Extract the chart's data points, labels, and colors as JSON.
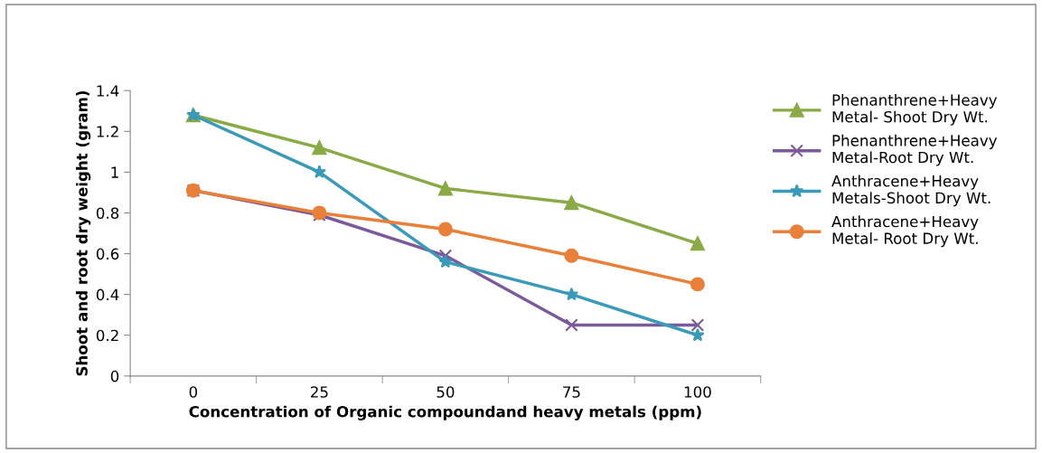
{
  "chart_data": {
    "type": "line",
    "xlabel": "Concentration of Organic compoundand heavy metals (ppm)",
    "ylabel": "Shoot and root dry weight (gram)",
    "categories": [
      "0",
      "25",
      "50",
      "75",
      "100"
    ],
    "series": [
      {
        "name": "Phenanthrene+Heavy\nMetal- Shoot Dry Wt.",
        "color": "#8aaa46",
        "marker": "triangle",
        "values": [
          1.28,
          1.12,
          0.92,
          0.85,
          0.65
        ]
      },
      {
        "name": "Phenanthrene+Heavy\nMetal-Root Dry Wt.",
        "color": "#7a5a9a",
        "marker": "cross",
        "values": [
          0.91,
          0.79,
          0.59,
          0.25,
          0.25
        ]
      },
      {
        "name": "Anthracene+Heavy\nMetals-Shoot Dry Wt.",
        "color": "#3a9ab8",
        "marker": "star",
        "values": [
          1.28,
          1.0,
          0.56,
          0.4,
          0.2
        ]
      },
      {
        "name": "Anthracene+Heavy\nMetal- Root Dry Wt.",
        "color": "#e8803a",
        "marker": "circle",
        "values": [
          0.91,
          0.8,
          0.72,
          0.59,
          0.45
        ]
      }
    ],
    "ylim": [
      0,
      1.4
    ],
    "yticks": [
      0,
      0.2,
      0.4,
      0.6,
      0.8,
      1,
      1.2,
      1.4
    ],
    "grid": false,
    "legend": "right",
    "line_style": "solid"
  }
}
